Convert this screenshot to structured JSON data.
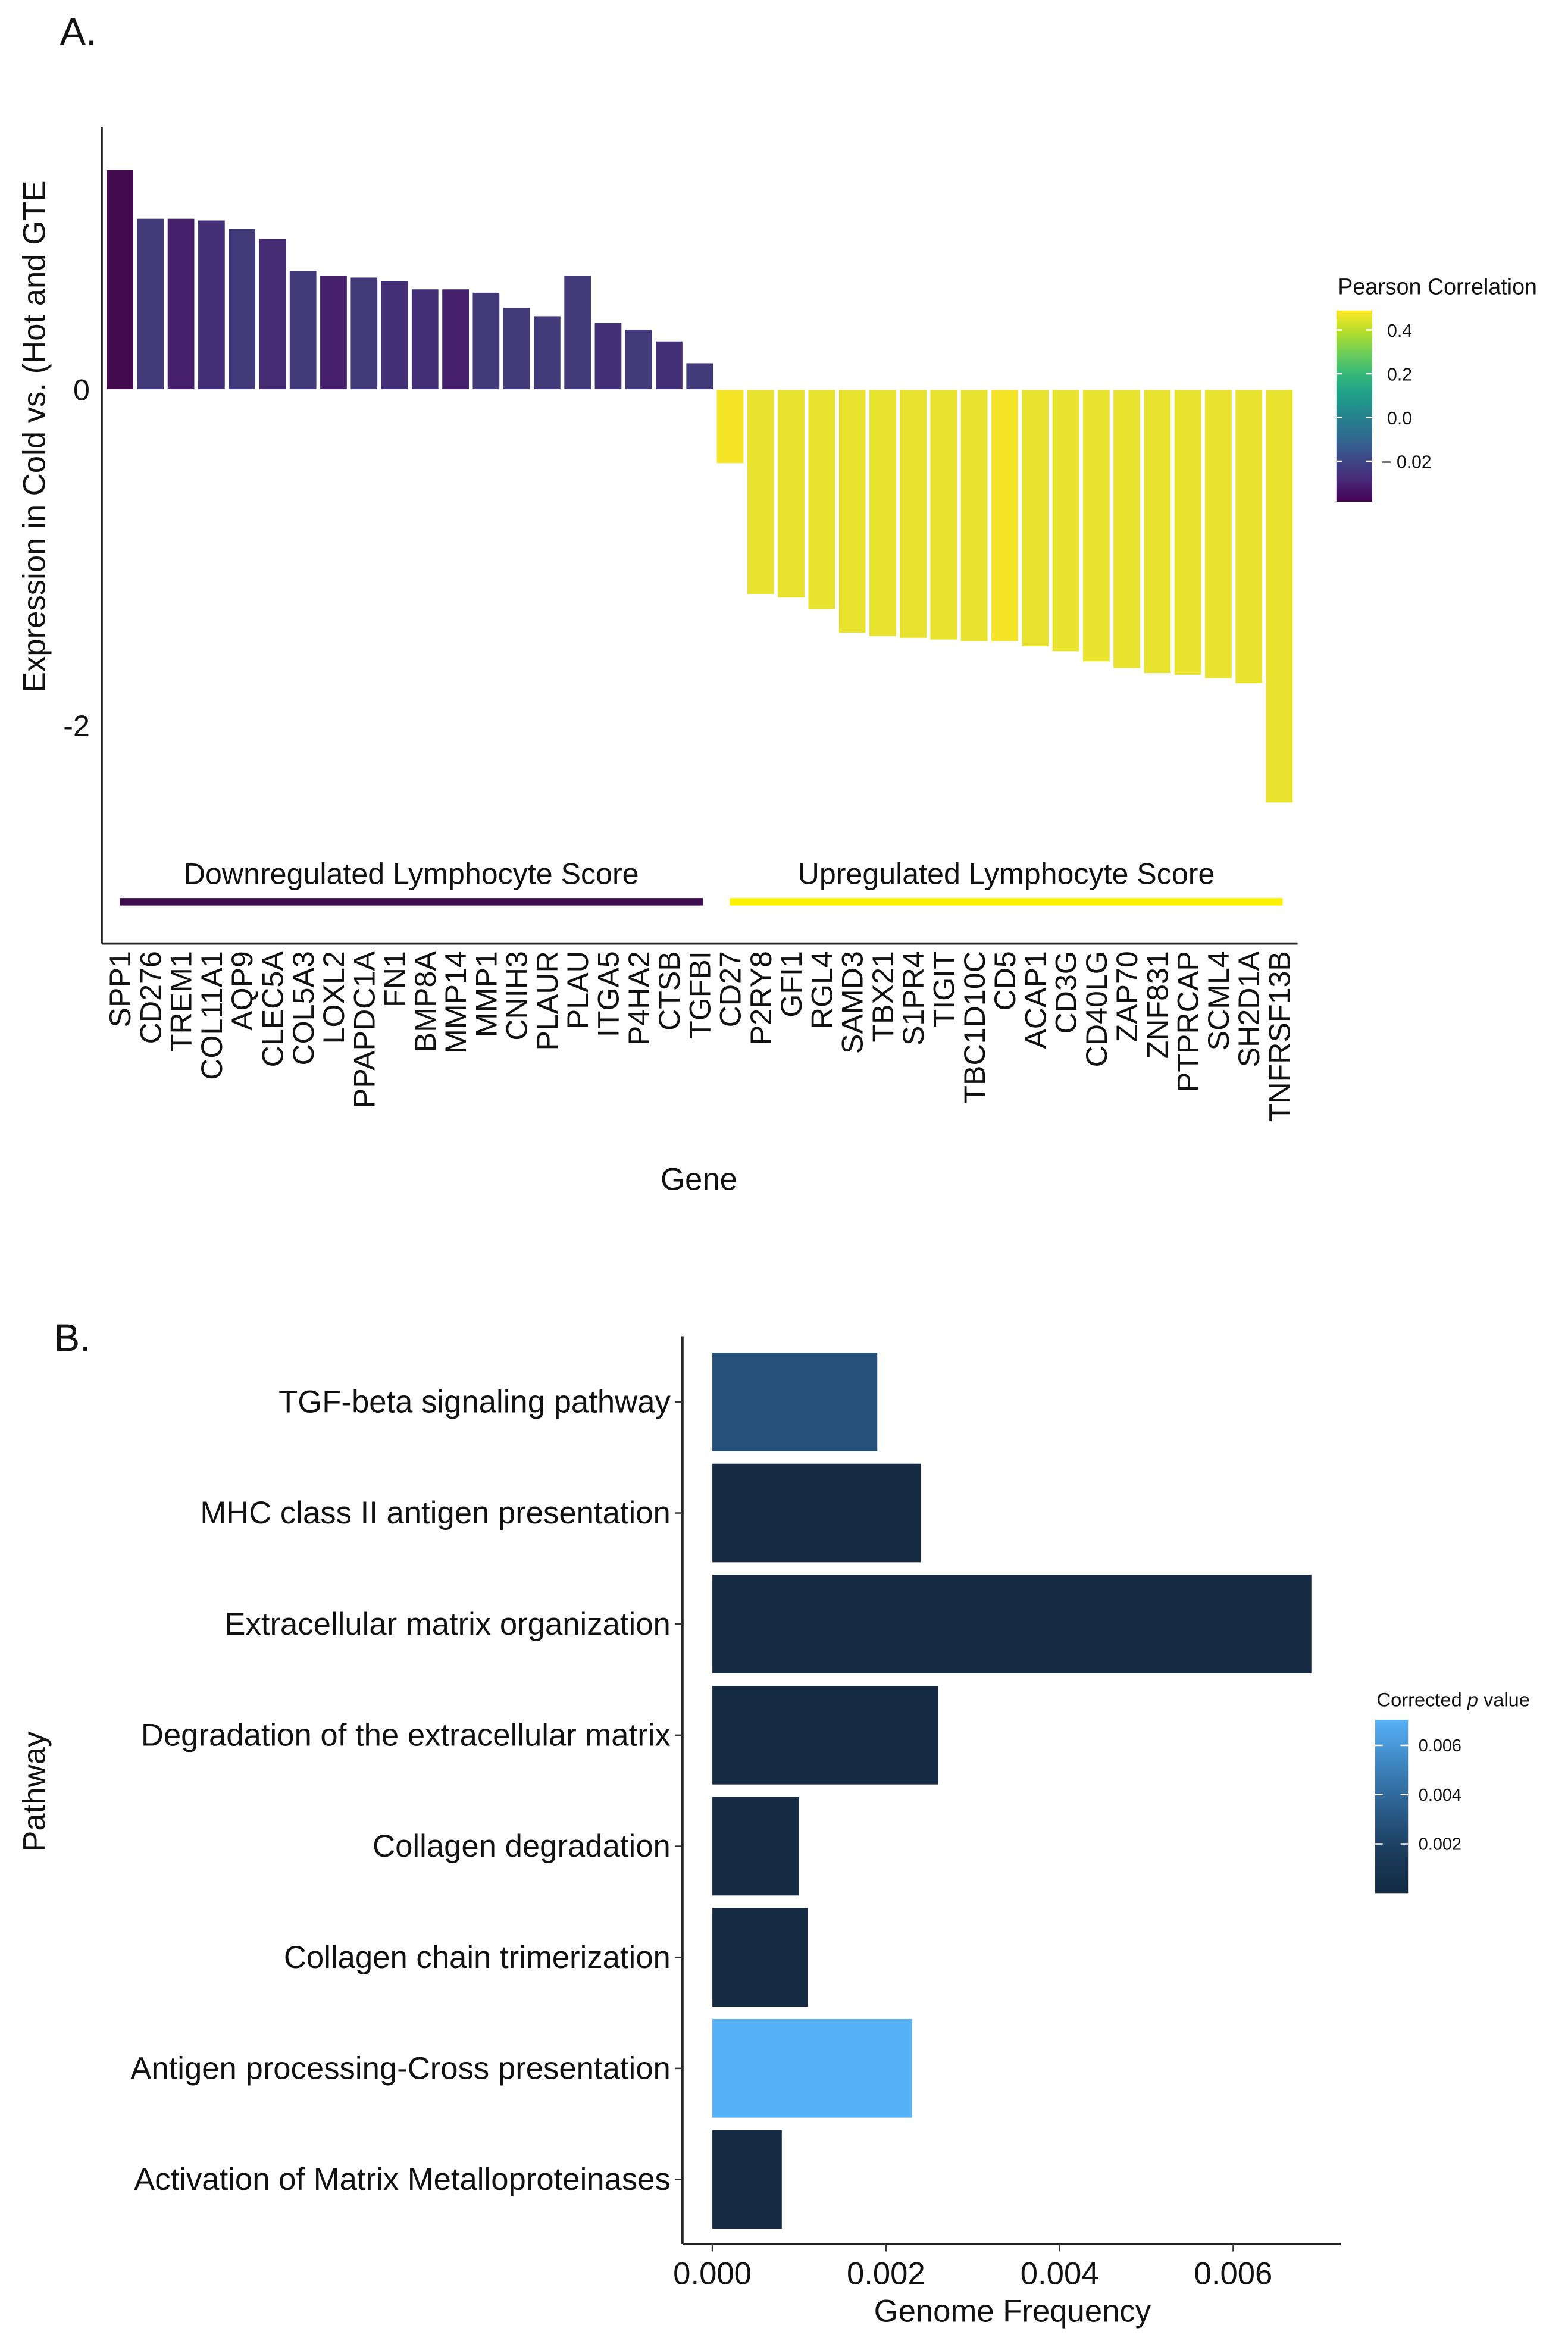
{
  "chart_data": [
    {
      "panel_label": "A.",
      "type": "bar",
      "xlabel": "Gene",
      "ylabel": "Expression in Cold vs. (Hot and GTE",
      "ylim": [
        -3.3,
        1.55
      ],
      "yticks": [
        {
          "value": 0,
          "label": "0"
        },
        {
          "value": -2,
          "label": "-2"
        }
      ],
      "categories": [
        "SPP1",
        "CD276",
        "TREM1",
        "COL11A1",
        "AQP9",
        "CLEC5A",
        "COL5A3",
        "LOXL2",
        "PPAPDC1A",
        "FN1",
        "BMP8A",
        "MMP14",
        "MMP1",
        "CNIH3",
        "PLAUR",
        "PLAU",
        "ITGA5",
        "P4HA2",
        "CTSB",
        "TGFBI",
        "CD27",
        "P2RY8",
        "GFI1",
        "RGL4",
        "SAMD3",
        "TBX21",
        "S1PR4",
        "TIGIT",
        "TBC1D10C",
        "CD5",
        "ACAP1",
        "CD3G",
        "CD40LG",
        "ZAP70",
        "ZNF831",
        "PTPRCAP",
        "SCML4",
        "SH2D1A",
        "TNFRSF13B"
      ],
      "values": [
        1.31,
        1.02,
        1.02,
        1.01,
        0.96,
        0.9,
        0.71,
        0.68,
        0.67,
        0.65,
        0.6,
        0.6,
        0.58,
        0.49,
        0.44,
        0.68,
        0.4,
        0.36,
        0.29,
        0.16,
        -0.44,
        -1.22,
        -1.24,
        -1.31,
        -1.45,
        -1.47,
        -1.48,
        -1.49,
        -1.5,
        -1.5,
        -1.53,
        -1.56,
        -1.62,
        -1.66,
        -1.69,
        -1.7,
        -1.72,
        -1.75,
        -2.46
      ],
      "colors": [
        "#440a4e",
        "#433a79",
        "#46206a",
        "#443076",
        "#433a79",
        "#452c72",
        "#433a79",
        "#46206a",
        "#433a79",
        "#443076",
        "#443076",
        "#46206a",
        "#433a79",
        "#433a79",
        "#433a79",
        "#433a79",
        "#443076",
        "#433a79",
        "#443076",
        "#433a79",
        "#f5e426",
        "#e8e32f",
        "#e8e32f",
        "#e8e32f",
        "#e8e32f",
        "#e8e32f",
        "#e8e32f",
        "#e8e32f",
        "#e8e32f",
        "#f5e426",
        "#e8e32f",
        "#e8e32f",
        "#e8e32f",
        "#e8e32f",
        "#e8e32f",
        "#e8e32f",
        "#e8e32f",
        "#e8e32f",
        "#e8e32f"
      ],
      "annotations": [
        {
          "text": "Downregulated Lymphocyte Score",
          "color": "#3d0f4f",
          "from": "SPP1",
          "to": "TGFBI"
        },
        {
          "text": "Upregulated Lymphocyte Score",
          "color": "#fbf200",
          "from": "CD27",
          "to": "TNFRSF13B"
        }
      ],
      "legend": {
        "title": "Pearson Correlation",
        "placement": "right",
        "colors": [
          "#fde725",
          "#b5de2b",
          "#6ece58",
          "#35b779",
          "#1f9e89",
          "#26828e",
          "#31688e",
          "#3e4989",
          "#482878",
          "#440154"
        ],
        "ticks": [
          "0.4",
          "0.2",
          "0.0",
          "− 0.02"
        ]
      }
    },
    {
      "panel_label": "B.",
      "type": "bar",
      "orientation": "horizontal",
      "xlabel": "Genome Frequency",
      "ylabel": "Pathway",
      "xlim": [
        -0.00035,
        0.0072
      ],
      "xticks": [
        {
          "value": 0,
          "label": "0.000"
        },
        {
          "value": 0.002,
          "label": "0.002"
        },
        {
          "value": 0.004,
          "label": "0.004"
        },
        {
          "value": 0.006,
          "label": "0.006"
        }
      ],
      "categories": [
        "TGF-beta signaling pathway",
        "MHC class II antigen presentation",
        "Extracellular matrix organization",
        "Degradation of the extracellular matrix",
        "Collagen degradation",
        "Collagen chain trimerization",
        "Antigen processing-Cross presentation",
        "Activation of Matrix Metalloproteinases"
      ],
      "values": [
        0.0019,
        0.0024,
        0.0069,
        0.0026,
        0.001,
        0.0011,
        0.0023,
        0.0008
      ],
      "colors": [
        "#24507a",
        "#152a43",
        "#152a43",
        "#152a43",
        "#152a43",
        "#152a43",
        "#56b1f7",
        "#152a43"
      ],
      "legend": {
        "title_prefix": "Corrected",
        "title_italic": "p",
        "title_suffix": "value",
        "placement": "right",
        "colors": [
          "#56b1f7",
          "#3e86c1",
          "#2b5f8e",
          "#1c3d5e",
          "#132b43"
        ],
        "ticks": [
          "0.006",
          "0.004",
          "0.002"
        ]
      }
    }
  ]
}
